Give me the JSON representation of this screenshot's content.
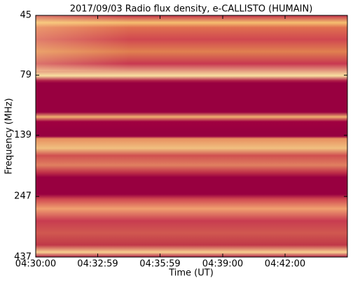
{
  "chart_data": {
    "type": "heatmap",
    "title": "2017/09/03  Radio flux density, e-CALLISTO (HUMAIN)",
    "x_label": "Time (UT)",
    "y_label": "Frequency (MHz)",
    "xlim": [
      16200,
      17100
    ],
    "xticks": [
      {
        "value": 16200,
        "label": "04:30:00"
      },
      {
        "value": 16379,
        "label": "04:32:59"
      },
      {
        "value": 16559,
        "label": "04:35:59"
      },
      {
        "value": 16740,
        "label": "04:39:00"
      },
      {
        "value": 16920,
        "label": "04:42:00"
      }
    ],
    "ylim": [
      45,
      437
    ],
    "yticks": [
      45,
      79,
      139,
      247,
      437
    ],
    "y_log_scale": true,
    "y_inverted": true
  }
}
